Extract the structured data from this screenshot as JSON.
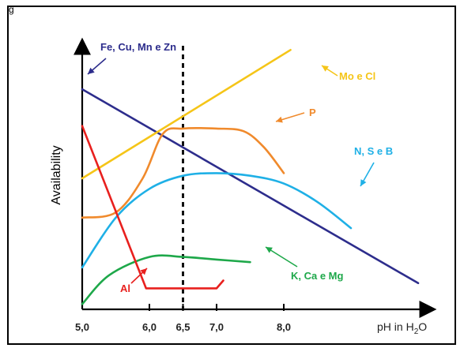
{
  "corner_label": "g",
  "chart_data": {
    "type": "line",
    "ylabel": "Availability",
    "xlabel": "pH in H2O",
    "xlabel_parts": {
      "main": "pH in H",
      "sub": "2",
      "end": "O"
    },
    "x_ticks": [
      {
        "value": 5.0,
        "label": "5,0"
      },
      {
        "value": 6.0,
        "label": "6,0"
      },
      {
        "value": 6.5,
        "label": "6,5"
      },
      {
        "value": 7.0,
        "label": "7,0"
      },
      {
        "value": 8.0,
        "label": "8,0"
      }
    ],
    "xlim": [
      5.0,
      10.0
    ],
    "ylim": [
      0,
      100
    ],
    "reference_line": {
      "x": 6.5,
      "style": "dashed"
    },
    "y_axis_ticks": false,
    "series": [
      {
        "name": "Fe, Cu, Mn e Zn",
        "color": "#2d2d8c",
        "x": [
          5.0,
          10.0
        ],
        "y": [
          84,
          10
        ]
      },
      {
        "name": "Mo e Cl",
        "color": "#f5c518",
        "x": [
          5.0,
          8.1
        ],
        "y": [
          50,
          99
        ]
      },
      {
        "name": "P",
        "color": "#f08a2c",
        "x": [
          5.0,
          5.5,
          5.9,
          6.2,
          6.5,
          7.0,
          7.4,
          7.7,
          8.0
        ],
        "y": [
          35,
          37,
          50,
          67,
          69,
          69,
          68,
          62,
          52
        ]
      },
      {
        "name": "N, S e B",
        "color": "#1fb0e6",
        "x": [
          5.0,
          5.5,
          6.0,
          6.5,
          7.0,
          7.5,
          8.0,
          8.5,
          9.0
        ],
        "y": [
          16,
          35,
          46,
          51,
          52,
          51,
          48,
          41,
          31
        ]
      },
      {
        "name": "K, Ca e Mg",
        "color": "#1ea84a",
        "x": [
          5.0,
          5.4,
          6.0,
          6.5,
          7.0,
          7.5
        ],
        "y": [
          2,
          13,
          20,
          20,
          19,
          18
        ]
      },
      {
        "name": "Al",
        "color": "#e8201e",
        "x": [
          5.0,
          5.95,
          7.0,
          7.1
        ],
        "y": [
          70,
          8,
          8,
          11
        ]
      }
    ],
    "labels": [
      {
        "series": "Fe, Cu, Mn e Zn",
        "text": "Fe, Cu, Mn e Zn",
        "color": "#2d2d8c"
      },
      {
        "series": "Mo e Cl",
        "text": "Mo e Cl",
        "color": "#f5c518"
      },
      {
        "series": "P",
        "text": "P",
        "color": "#f08a2c"
      },
      {
        "series": "N, S e B",
        "text": "N, S e B",
        "color": "#1fb0e6"
      },
      {
        "series": "K, Ca e Mg",
        "text": "K, Ca e Mg",
        "color": "#1ea84a"
      },
      {
        "series": "Al",
        "text": "Al",
        "color": "#e8201e"
      }
    ]
  }
}
